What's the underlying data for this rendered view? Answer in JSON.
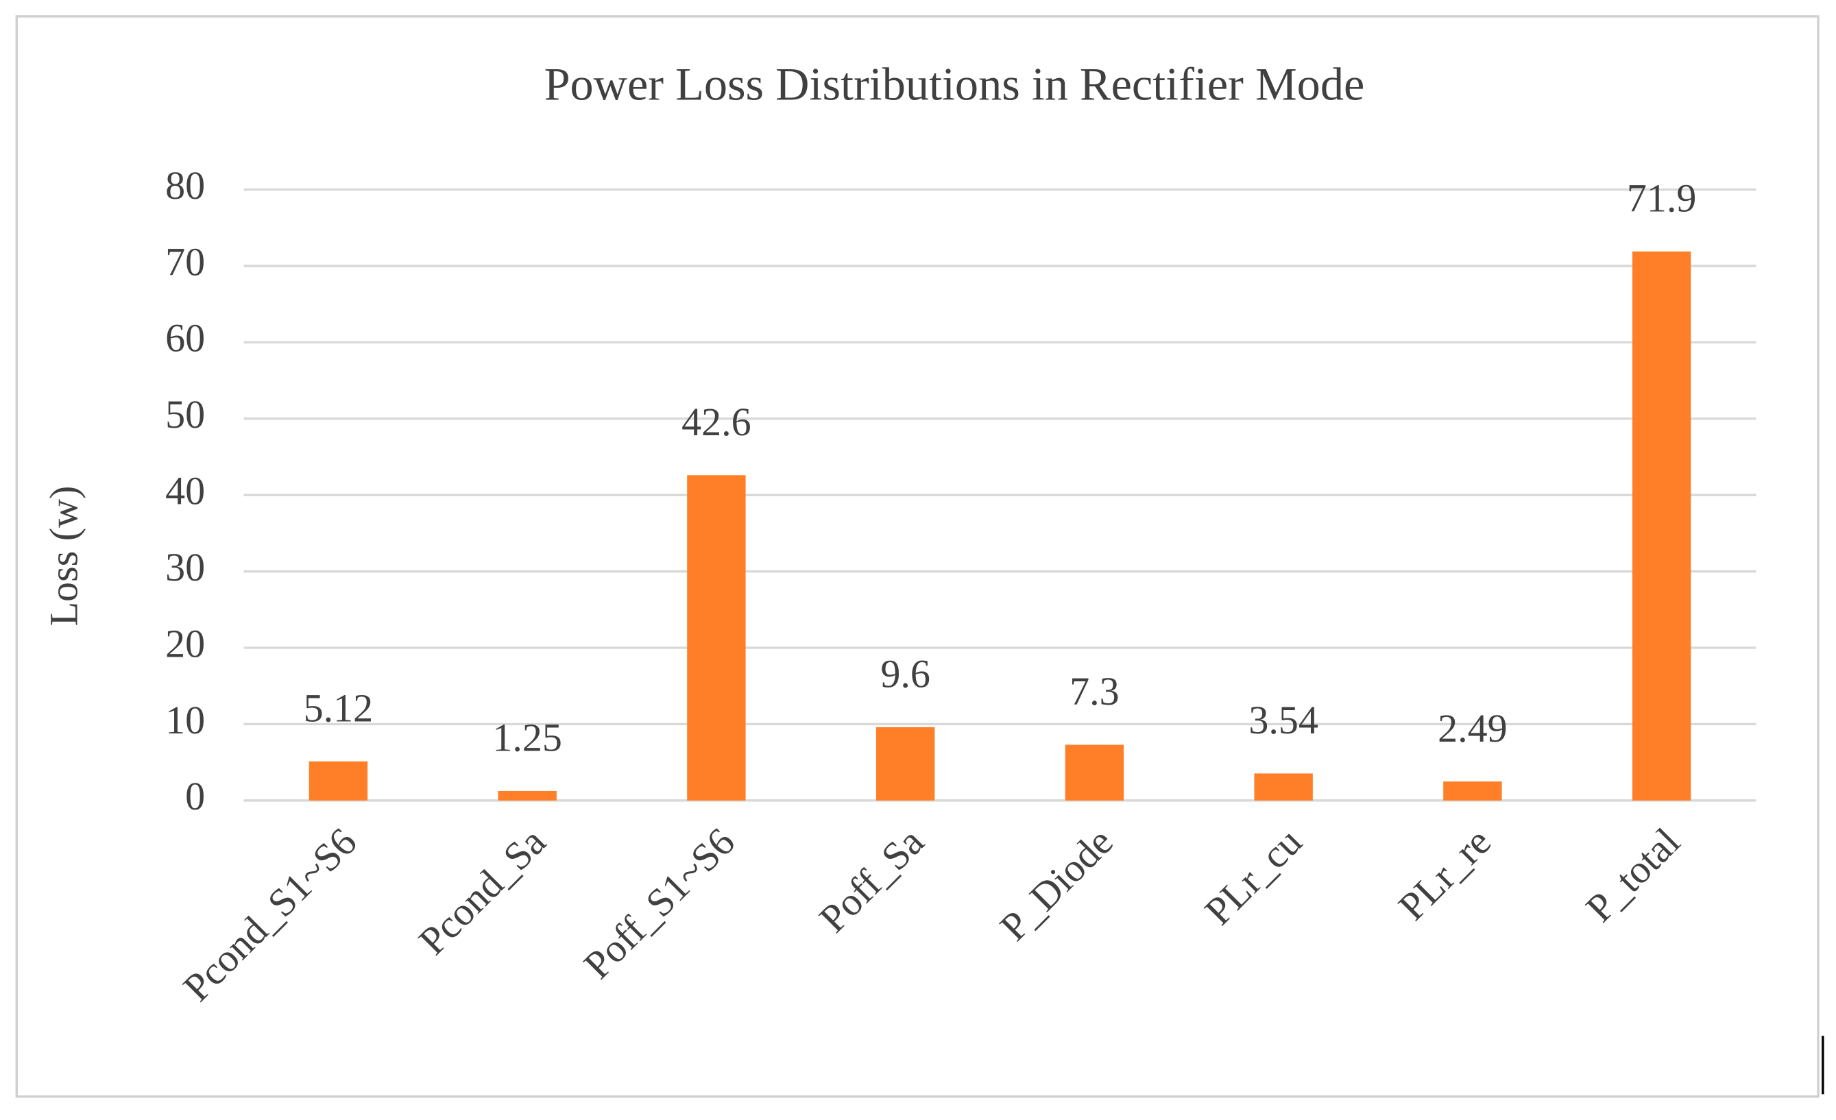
{
  "chart_data": {
    "type": "bar",
    "title": "Power Loss Distributions in Rectifier Mode",
    "y_label": "Loss (w)",
    "categories": [
      "Pcond_S1~S6",
      "Pcond_Sa",
      "Poff_S1~S6",
      "Poff_Sa",
      "P_Diode",
      "PLr_cu",
      "PLr_re",
      "P_total"
    ],
    "values": [
      5.12,
      1.25,
      42.6,
      9.6,
      7.3,
      3.54,
      2.49,
      71.9
    ],
    "color": "#fe7f27",
    "ylim": [
      0,
      80
    ],
    "yticks": [
      0,
      10,
      20,
      30,
      40,
      50,
      60,
      70,
      80
    ],
    "grid": true,
    "data_labels": true
  }
}
